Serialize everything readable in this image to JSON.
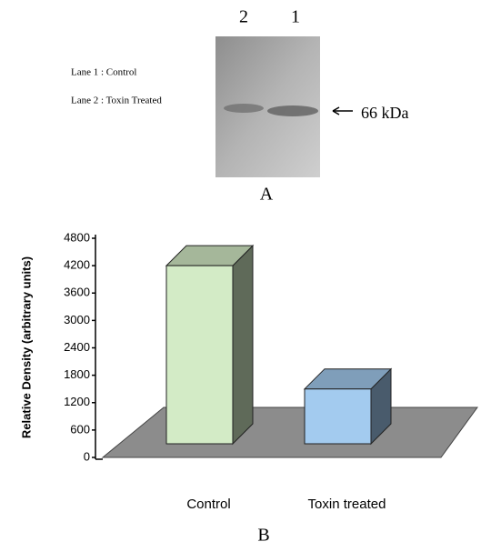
{
  "blot": {
    "lane_numbers": [
      "2",
      "1"
    ],
    "legend": [
      "Lane 1 :  Control",
      "Lane 2 :  Toxin Treated"
    ],
    "marker": "66 kDa",
    "panel_label": "A"
  },
  "chart_data": {
    "type": "bar3d",
    "panel_label": "B",
    "ylabel": "Relative Density (arbitrary units)",
    "categories": [
      "Control",
      "Toxin treated"
    ],
    "values": [
      4200,
      1500
    ],
    "colors": [
      "#d3ebc6",
      "#a3cbef"
    ],
    "ylim": [
      0,
      4800
    ],
    "yticks": [
      0,
      600,
      1200,
      1800,
      2400,
      3000,
      3600,
      4200,
      4800
    ]
  }
}
